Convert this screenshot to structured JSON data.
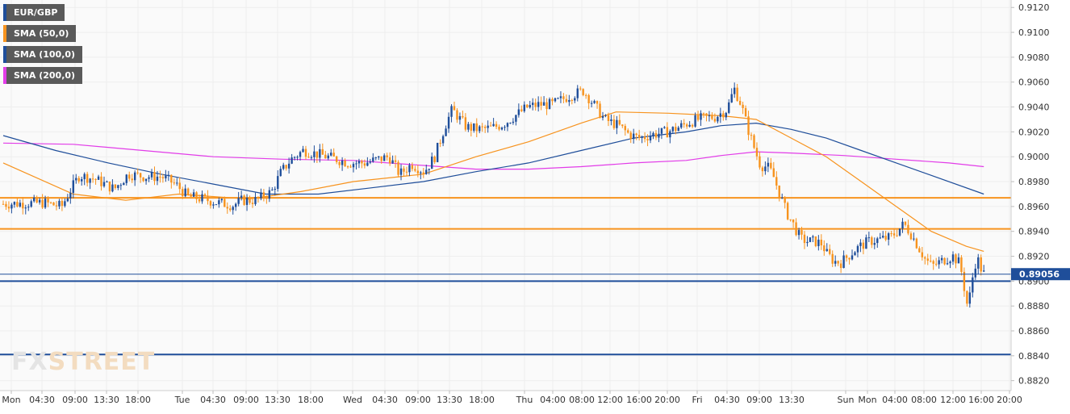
{
  "legend": [
    {
      "label": "EUR/GBP",
      "color": "#1f4e9a"
    },
    {
      "label": "SMA (50,0)",
      "color": "#f7931e"
    },
    {
      "label": "SMA (100,0)",
      "color": "#1f4e9a"
    },
    {
      "label": "SMA (200,0)",
      "color": "#e23ce8"
    }
  ],
  "watermark": {
    "part1": "FX",
    "part2": "STREET"
  },
  "colors": {
    "up_candle": "#1f4e9a",
    "down_candle": "#f7931e",
    "sma50": "#f7931e",
    "sma100": "#1f4e9a",
    "sma200": "#e23ce8",
    "grid": "#eeeeee",
    "background": "#fafafa"
  },
  "chart_data": {
    "type": "candlestick",
    "title": "",
    "symbol": "EUR/GBP",
    "ylim": [
      0.8812,
      0.9126
    ],
    "grid": true,
    "legend_position": "top-left",
    "y_ticks": [
      "0.8820",
      "0.8840",
      "0.8860",
      "0.8880",
      "0.8900",
      "0.8920",
      "0.8940",
      "0.8960",
      "0.8980",
      "0.9000",
      "0.9020",
      "0.9040",
      "0.9060",
      "0.9080",
      "0.9100",
      "0.9120"
    ],
    "x_ticks": [
      "Mon",
      "04:30",
      "09:00",
      "13:30",
      "18:00",
      "Tue",
      "04:30",
      "09:00",
      "13:30",
      "18:00",
      "Wed",
      "04:30",
      "09:00",
      "13:30",
      "18:00",
      "Thu",
      "04:00",
      "08:00",
      "12:00",
      "16:00",
      "20:00",
      "Fri",
      "04:30",
      "09:00",
      "13:30",
      "Sun",
      "Mon",
      "04:00",
      "08:00",
      "12:00",
      "16:00",
      "20:00"
    ],
    "current_price": "0.89056",
    "horizontal_levels": [
      {
        "value": 0.8967,
        "color": "#f7931e"
      },
      {
        "value": 0.8942,
        "color": "#f7931e"
      },
      {
        "value": 0.89,
        "color": "#1f4e9a"
      },
      {
        "value": 0.8841,
        "color": "#1f4e9a"
      }
    ],
    "price_path": [
      [
        0,
        0.8962
      ],
      [
        2.5,
        0.8963
      ],
      [
        3.5,
        0.896
      ],
      [
        4.0,
        0.8973
      ],
      [
        4.5,
        0.8985
      ],
      [
        5.4,
        0.8982
      ],
      [
        6.5,
        0.8974
      ],
      [
        7.3,
        0.8986
      ],
      [
        8.3,
        0.8984
      ],
      [
        9.2,
        0.8984
      ],
      [
        10.0,
        0.8978
      ],
      [
        10.7,
        0.8968
      ],
      [
        11.6,
        0.8966
      ],
      [
        12.4,
        0.8963
      ],
      [
        13.3,
        0.8961
      ],
      [
        13.8,
        0.8965
      ],
      [
        14.6,
        0.8965
      ],
      [
        15.5,
        0.8972
      ],
      [
        16.0,
        0.8987
      ],
      [
        16.6,
        0.8998
      ],
      [
        17.3,
        0.9005
      ],
      [
        18.4,
        0.9001
      ],
      [
        19.2,
        0.8998
      ],
      [
        19.9,
        0.8995
      ],
      [
        20.8,
        0.8995
      ],
      [
        21.6,
        0.8998
      ],
      [
        22.2,
        0.9
      ],
      [
        22.8,
        0.8986
      ],
      [
        23.5,
        0.8994
      ],
      [
        24.2,
        0.8988
      ],
      [
        24.8,
        0.9
      ],
      [
        25.4,
        0.9025
      ],
      [
        25.8,
        0.9038
      ],
      [
        26.6,
        0.9024
      ],
      [
        27.3,
        0.9022
      ],
      [
        28.0,
        0.9023
      ],
      [
        28.7,
        0.9026
      ],
      [
        29.4,
        0.9033
      ],
      [
        30.1,
        0.904
      ],
      [
        30.8,
        0.9042
      ],
      [
        31.5,
        0.9042
      ],
      [
        32.5,
        0.9049
      ],
      [
        33.3,
        0.9053
      ],
      [
        34.0,
        0.904
      ],
      [
        34.5,
        0.903
      ],
      [
        35.3,
        0.9025
      ],
      [
        35.9,
        0.9018
      ],
      [
        36.5,
        0.9015
      ],
      [
        37.3,
        0.9018
      ],
      [
        38.1,
        0.902
      ],
      [
        38.8,
        0.9024
      ],
      [
        39.4,
        0.9028
      ],
      [
        40.1,
        0.9031
      ],
      [
        40.8,
        0.9032
      ],
      [
        41.5,
        0.9038
      ],
      [
        41.9,
        0.9055
      ],
      [
        42.3,
        0.9042
      ],
      [
        42.7,
        0.9022
      ],
      [
        43.1,
        0.9005
      ],
      [
        43.4,
        0.8993
      ],
      [
        43.8,
        0.8992
      ],
      [
        44.1,
        0.8986
      ],
      [
        44.5,
        0.897
      ],
      [
        44.9,
        0.8955
      ],
      [
        45.3,
        0.8945
      ],
      [
        45.7,
        0.8934
      ],
      [
        46.1,
        0.8932
      ],
      [
        46.5,
        0.8932
      ],
      [
        46.9,
        0.893
      ],
      [
        47.2,
        0.8922
      ],
      [
        47.6,
        0.8916
      ],
      [
        48.0,
        0.8915
      ],
      [
        48.4,
        0.892
      ],
      [
        48.8,
        0.8925
      ],
      [
        49.2,
        0.8929
      ],
      [
        49.6,
        0.8932
      ],
      [
        50.0,
        0.8933
      ],
      [
        50.4,
        0.8934
      ],
      [
        50.8,
        0.8935
      ],
      [
        51.2,
        0.894
      ],
      [
        51.6,
        0.8946
      ],
      [
        52.0,
        0.8938
      ],
      [
        52.4,
        0.8928
      ],
      [
        52.8,
        0.8918
      ],
      [
        53.2,
        0.8912
      ],
      [
        53.6,
        0.8915
      ],
      [
        54.0,
        0.8918
      ],
      [
        54.4,
        0.892
      ],
      [
        54.8,
        0.8914
      ],
      [
        55.0,
        0.8898
      ],
      [
        55.2,
        0.8882
      ],
      [
        55.4,
        0.889
      ],
      [
        55.6,
        0.8912
      ],
      [
        55.8,
        0.8918
      ],
      [
        56.1,
        0.8906
      ]
    ],
    "sma50": [
      [
        0,
        0.8995
      ],
      [
        4,
        0.897
      ],
      [
        7,
        0.8965
      ],
      [
        10,
        0.897
      ],
      [
        14,
        0.8966
      ],
      [
        17,
        0.8972
      ],
      [
        20,
        0.898
      ],
      [
        24,
        0.8986
      ],
      [
        27,
        0.9
      ],
      [
        30,
        0.9012
      ],
      [
        33,
        0.9027
      ],
      [
        35,
        0.9036
      ],
      [
        38,
        0.9035
      ],
      [
        41,
        0.9033
      ],
      [
        43,
        0.903
      ],
      [
        45,
        0.9015
      ],
      [
        47,
        0.9
      ],
      [
        49,
        0.898
      ],
      [
        51,
        0.896
      ],
      [
        53,
        0.894
      ],
      [
        55,
        0.8928
      ],
      [
        56,
        0.8924
      ]
    ],
    "sma100": [
      [
        0,
        0.9017
      ],
      [
        3,
        0.9005
      ],
      [
        6,
        0.8995
      ],
      [
        9,
        0.8986
      ],
      [
        12,
        0.8978
      ],
      [
        15,
        0.897
      ],
      [
        18,
        0.897
      ],
      [
        21,
        0.8975
      ],
      [
        24,
        0.898
      ],
      [
        27,
        0.8988
      ],
      [
        30,
        0.8995
      ],
      [
        33,
        0.9005
      ],
      [
        36,
        0.9015
      ],
      [
        39,
        0.902
      ],
      [
        41,
        0.9025
      ],
      [
        43,
        0.9027
      ],
      [
        45,
        0.9022
      ],
      [
        47,
        0.9015
      ],
      [
        49,
        0.9005
      ],
      [
        51,
        0.8995
      ],
      [
        53,
        0.8985
      ],
      [
        56,
        0.897
      ]
    ],
    "sma200": [
      [
        0,
        0.9011
      ],
      [
        4,
        0.901
      ],
      [
        8,
        0.9005
      ],
      [
        12,
        0.9
      ],
      [
        16,
        0.8998
      ],
      [
        20,
        0.8997
      ],
      [
        24,
        0.8993
      ],
      [
        27,
        0.899
      ],
      [
        30,
        0.899
      ],
      [
        33,
        0.8992
      ],
      [
        36,
        0.8995
      ],
      [
        39,
        0.8997
      ],
      [
        41,
        0.9001
      ],
      [
        43,
        0.9004
      ],
      [
        45,
        0.9003
      ],
      [
        48,
        0.9001
      ],
      [
        51,
        0.8998
      ],
      [
        54,
        0.8995
      ],
      [
        56,
        0.8992
      ]
    ]
  }
}
